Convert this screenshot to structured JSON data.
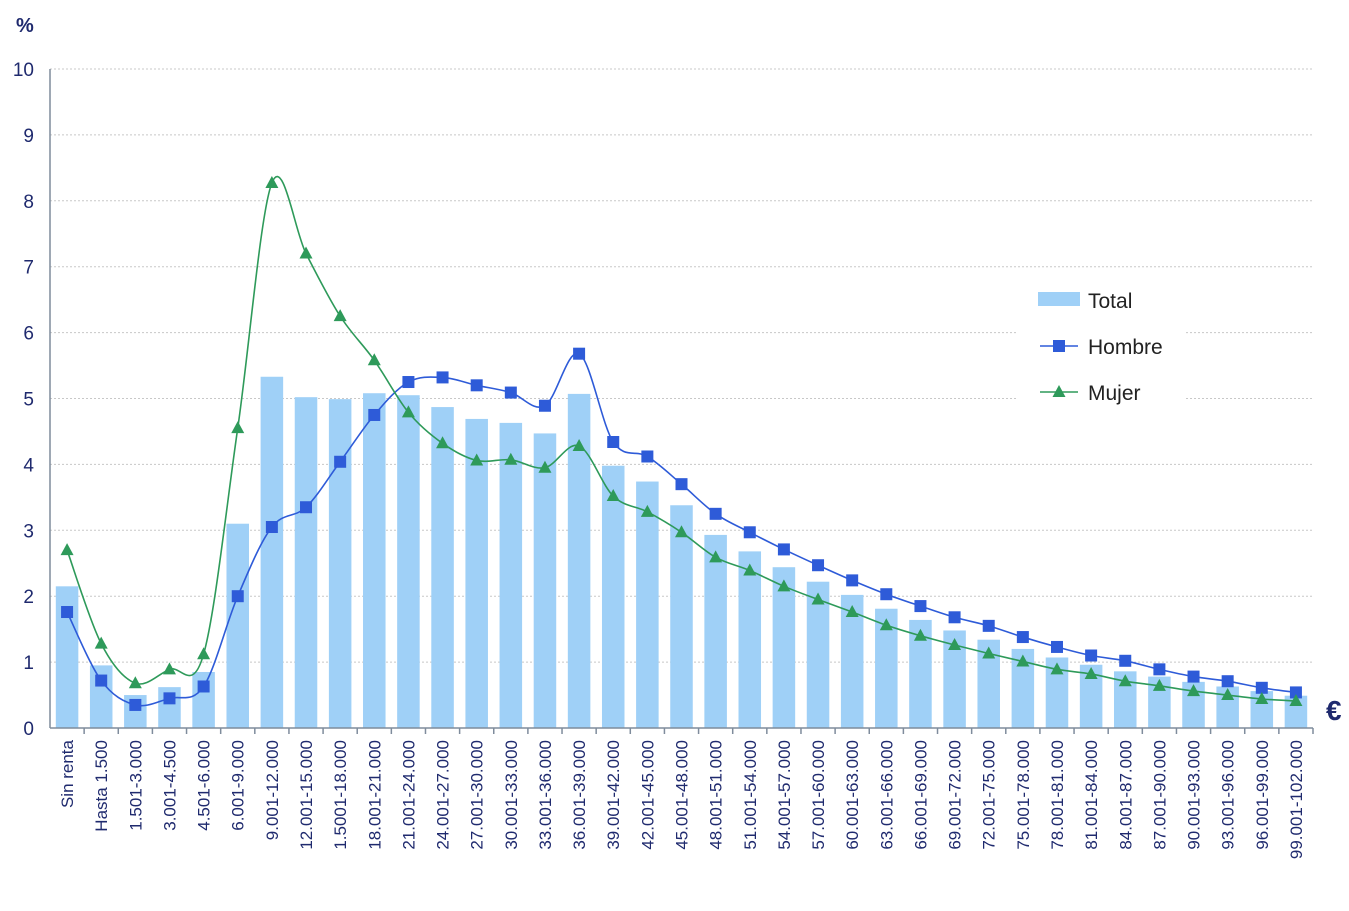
{
  "chart_data": {
    "type": "bar",
    "ylabel": "%",
    "xunit": "€",
    "ylim": [
      0,
      10
    ],
    "yticks": [
      0,
      1,
      2,
      3,
      4,
      5,
      6,
      7,
      8,
      9,
      10
    ],
    "grid": true,
    "legend_position": "right",
    "categories": [
      "Sin renta",
      "Hasta 1.500",
      "1.501-3.000",
      "3.001-4.500",
      "4.501-6.000",
      "6.001-9.000",
      "9.001-12.000",
      "12.001-15.000",
      "1.5001-18.000",
      "18.001-21.000",
      "21.001-24.000",
      "24.001-27.000",
      "27.001-30.000",
      "30.001-33.000",
      "33.001-36.000",
      "36.001-39.000",
      "39.001-42.000",
      "42.001-45.000",
      "45.001-48.000",
      "48.001-51.000",
      "51.001-54.000",
      "54.001-57.000",
      "57.001-60.000",
      "60.001-63.000",
      "63.001-66.000",
      "66.001-69.000",
      "69.001-72.000",
      "72.001-75.000",
      "75.001-78.000",
      "78.001-81.000",
      "81.001-84.000",
      "84.001-87.000",
      "87.001-90.000",
      "90.001-93.000",
      "93.001-96.000",
      "96.001-99.000",
      "99.001-102.000"
    ],
    "series": [
      {
        "name": "Total",
        "type": "bar",
        "color": "#9fd0f7",
        "values": [
          2.15,
          0.95,
          0.5,
          0.62,
          0.85,
          3.1,
          5.33,
          5.02,
          4.99,
          5.08,
          5.05,
          4.87,
          4.69,
          4.63,
          4.47,
          5.07,
          3.98,
          3.74,
          3.38,
          2.93,
          2.68,
          2.44,
          2.22,
          2.02,
          1.81,
          1.64,
          1.48,
          1.34,
          1.2,
          1.07,
          0.96,
          0.86,
          0.78,
          0.7,
          0.63,
          0.56,
          0.49
        ]
      },
      {
        "name": "Hombre",
        "type": "line",
        "marker": "square",
        "color": "#2e5bd8",
        "values": [
          1.76,
          0.72,
          0.35,
          0.45,
          0.63,
          2.0,
          3.05,
          3.35,
          4.04,
          4.75,
          5.25,
          5.32,
          5.2,
          5.09,
          4.89,
          5.68,
          4.34,
          4.12,
          3.7,
          3.25,
          2.97,
          2.71,
          2.47,
          2.24,
          2.03,
          1.85,
          1.68,
          1.55,
          1.38,
          1.23,
          1.1,
          1.02,
          0.89,
          0.78,
          0.71,
          0.61,
          0.54
        ]
      },
      {
        "name": "Mujer",
        "type": "line",
        "marker": "triangle",
        "color": "#2e9a5a",
        "values": [
          2.7,
          1.28,
          0.68,
          0.89,
          1.12,
          4.55,
          8.27,
          7.2,
          6.25,
          5.58,
          4.79,
          4.32,
          4.06,
          4.07,
          3.95,
          4.28,
          3.52,
          3.28,
          2.97,
          2.59,
          2.39,
          2.15,
          1.95,
          1.76,
          1.56,
          1.4,
          1.26,
          1.13,
          1.01,
          0.89,
          0.82,
          0.71,
          0.64,
          0.56,
          0.5,
          0.44,
          0.41
        ]
      }
    ]
  }
}
